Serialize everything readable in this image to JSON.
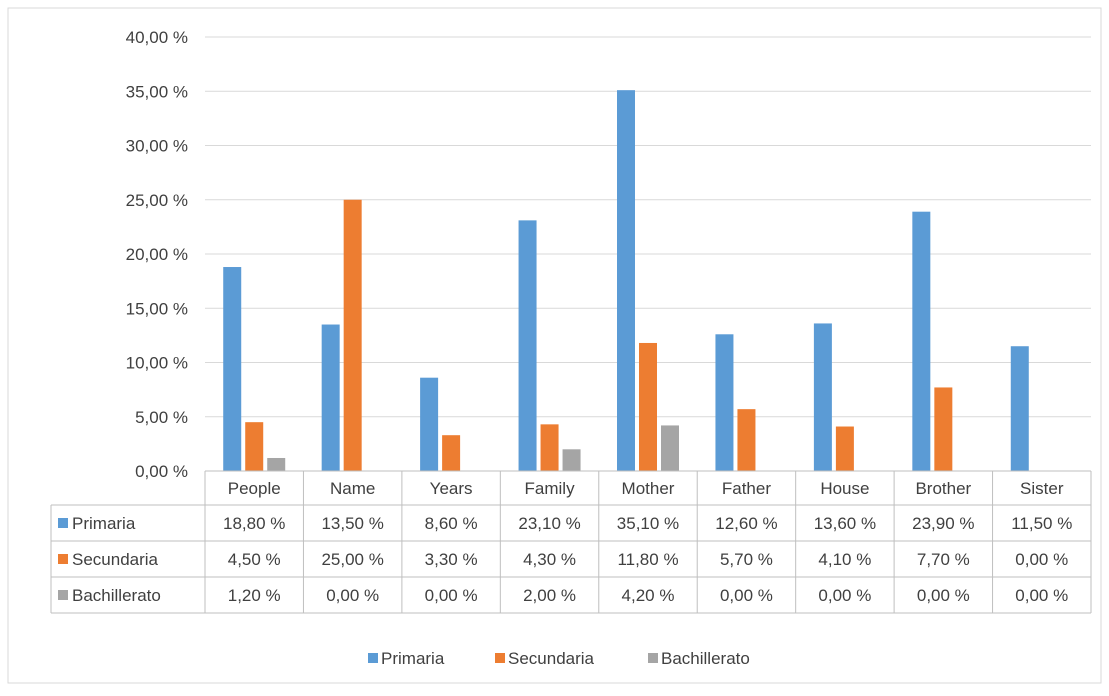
{
  "chart_data": {
    "type": "bar",
    "title": "",
    "categories": [
      "People",
      "Name",
      "Years",
      "Family",
      "Mother",
      "Father",
      "House",
      "Brother",
      "Sister"
    ],
    "series": [
      {
        "name": "Primaria",
        "color": "#5B9BD5",
        "values": [
          18.8,
          13.5,
          8.6,
          23.1,
          35.1,
          12.6,
          13.6,
          23.9,
          11.5
        ],
        "labels": [
          "18,80 %",
          "13,50 %",
          "8,60 %",
          "23,10 %",
          "35,10 %",
          "12,60 %",
          "13,60 %",
          "23,90 %",
          "11,50 %"
        ]
      },
      {
        "name": "Secundaria",
        "color": "#ED7D31",
        "values": [
          4.5,
          25.0,
          3.3,
          4.3,
          11.8,
          5.7,
          4.1,
          7.7,
          0.0
        ],
        "labels": [
          "4,50 %",
          "25,00 %",
          "3,30 %",
          "4,30 %",
          "11,80 %",
          "5,70 %",
          "4,10 %",
          "7,70 %",
          "0,00 %"
        ]
      },
      {
        "name": "Bachillerato",
        "color": "#A5A5A5",
        "values": [
          1.2,
          0.0,
          0.0,
          2.0,
          4.2,
          0.0,
          0.0,
          0.0,
          0.0
        ],
        "labels": [
          "1,20 %",
          "0,00 %",
          "0,00 %",
          "2,00 %",
          "4,20 %",
          "0,00 %",
          "0,00 %",
          "0,00 %",
          "0,00 %"
        ]
      }
    ],
    "y_ticks": [
      "0,00 %",
      "5,00 %",
      "10,00 %",
      "15,00 %",
      "20,00 %",
      "25,00 %",
      "30,00 %",
      "35,00 %",
      "40,00 %"
    ],
    "ylim": [
      0,
      40
    ],
    "grid": true,
    "legend_position": "bottom",
    "data_table": true
  }
}
